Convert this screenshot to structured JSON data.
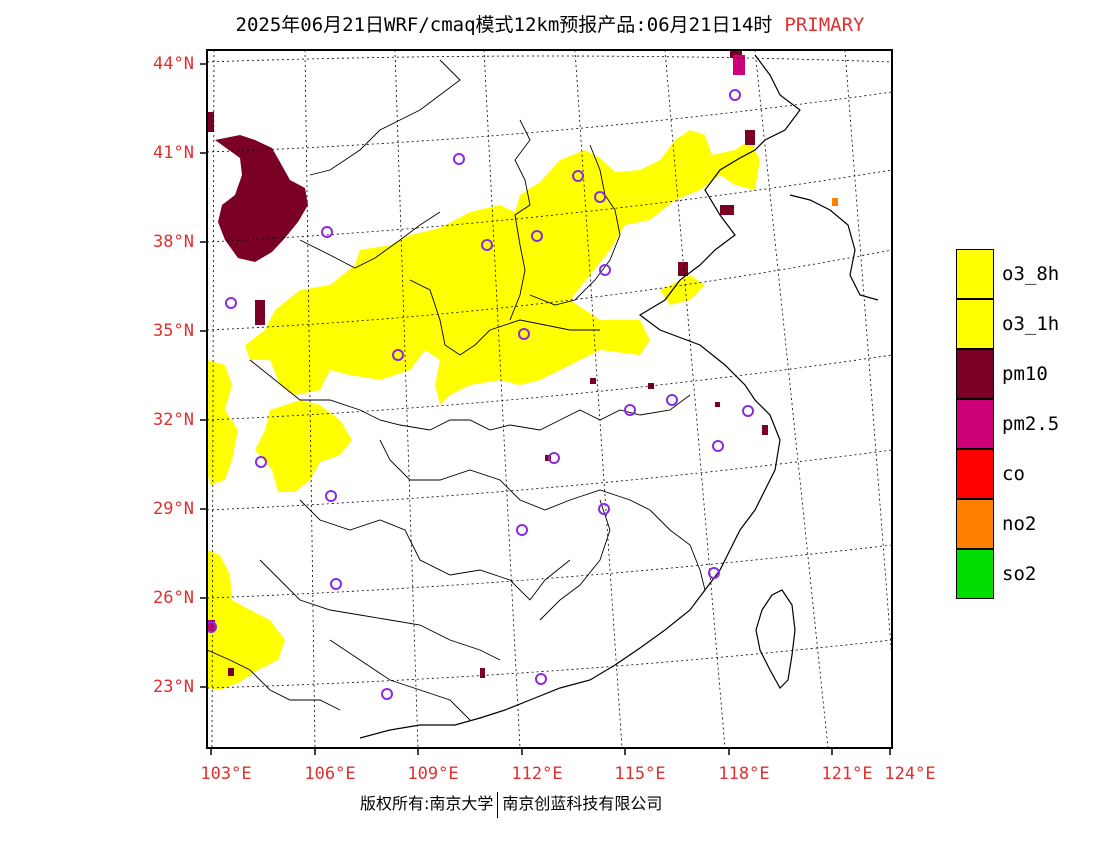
{
  "title": {
    "text": "2025年06月21日WRF/cmaq模式12km预报产品:06月21日14时",
    "badge": "PRIMARY",
    "badge_color": "#e03030"
  },
  "axes": {
    "lat_ticks": [
      "44°N",
      "41°N",
      "38°N",
      "35°N",
      "32°N",
      "29°N",
      "26°N",
      "23°N"
    ],
    "lon_ticks": [
      "103°E",
      "106°E",
      "109°E",
      "112°E",
      "115°E",
      "118°E",
      "121°E",
      "124°E"
    ],
    "tick_color": "#e03030"
  },
  "legend": [
    {
      "label": "o3_8h",
      "color": "#ffff00"
    },
    {
      "label": "o3_1h",
      "color": "#ffff00"
    },
    {
      "label": "pm10",
      "color": "#7a0026"
    },
    {
      "label": "pm2.5",
      "color": "#cc0077"
    },
    {
      "label": "co",
      "color": "#ff0000"
    },
    {
      "label": "no2",
      "color": "#ff8000"
    },
    {
      "label": "so2",
      "color": "#00dd00"
    }
  ],
  "footer": {
    "left": "版权所有:南京大学",
    "right": "南京创蓝科技有限公司"
  },
  "map_colors": {
    "o3": "#ffff00",
    "pm10": "#7a0026",
    "pm25": "#cc0077",
    "station": "#8a2be2",
    "frame": "#000000"
  }
}
